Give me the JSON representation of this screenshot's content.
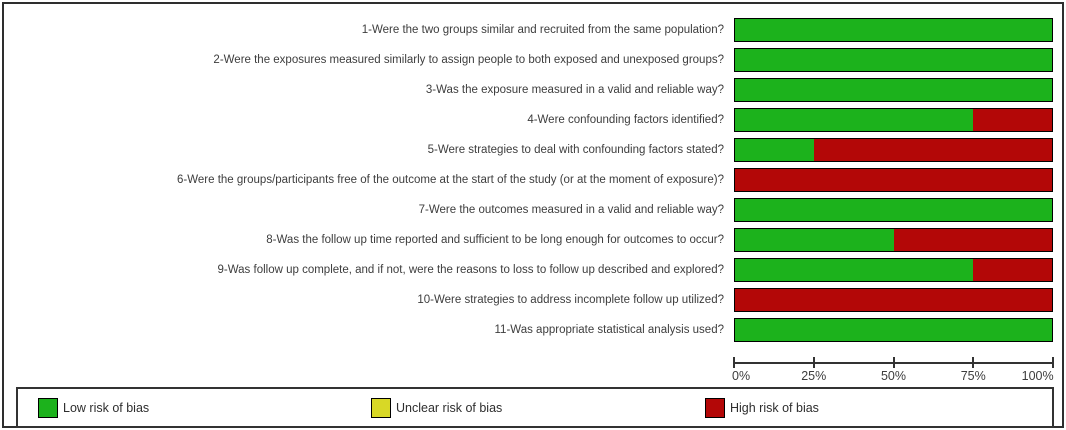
{
  "chart_data": {
    "type": "bar",
    "orientation": "horizontal",
    "stacked": true,
    "grid": false,
    "categories": [
      "1-Were the two groups similar and recruited from the same population?",
      "2-Were the exposures measured similarly to assign people to both exposed and unexposed groups?",
      "3-Was the exposure measured in a valid and reliable way?",
      "4-Were confounding factors identified?",
      "5-Were strategies to deal with confounding factors stated?",
      "6-Were the groups/participants free of the outcome at the start of the study (or at the moment of exposure)?",
      "7-Were the outcomes measured in a valid and reliable way?",
      "8-Was the follow up time reported and sufficient to be long enough for outcomes to occur?",
      "9-Was follow up complete, and if not, were the reasons to loss to follow up described and explored?",
      "10-Were strategies to address incomplete follow up utilized?",
      "11-Was appropriate statistical analysis used?"
    ],
    "series": [
      {
        "name": "Low risk of bias",
        "color_key": "low",
        "values": [
          100,
          100,
          100,
          75,
          25,
          0,
          100,
          50,
          75,
          0,
          100
        ]
      },
      {
        "name": "Unclear risk of bias",
        "color_key": "unclear",
        "values": [
          0,
          0,
          0,
          0,
          0,
          0,
          0,
          0,
          0,
          0,
          0
        ]
      },
      {
        "name": "High risk of bias",
        "color_key": "high",
        "values": [
          0,
          0,
          0,
          25,
          75,
          100,
          0,
          50,
          25,
          100,
          0
        ]
      }
    ],
    "x_axis": {
      "min": 0,
      "max": 100,
      "tick_labels": [
        "0%",
        "25%",
        "50%",
        "75%",
        "100%"
      ],
      "tick_positions": [
        0,
        25,
        50,
        75,
        100
      ]
    },
    "legend": {
      "position": "bottom",
      "items": [
        {
          "label": "Low risk of bias",
          "color_key": "low"
        },
        {
          "label": "Unclear risk of bias",
          "color_key": "unclear"
        },
        {
          "label": "High risk of bias",
          "color_key": "high"
        }
      ]
    },
    "colors": {
      "low": "#1cb21c",
      "unclear": "#d8d826",
      "high": "#b30707"
    }
  }
}
